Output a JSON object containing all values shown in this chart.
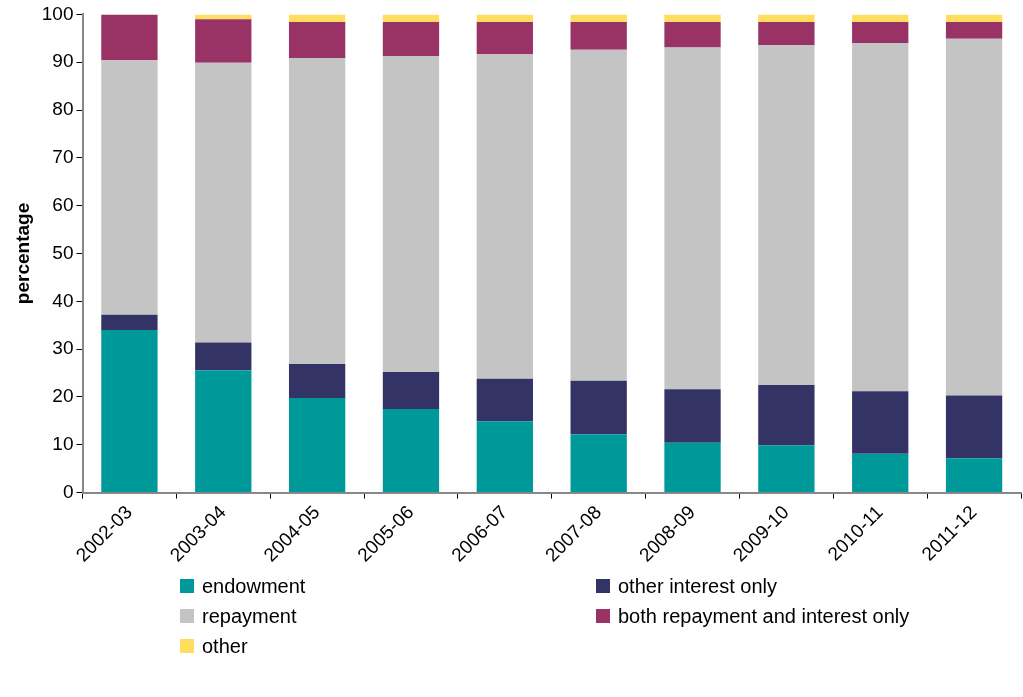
{
  "chart_data": {
    "type": "bar",
    "stacked": true,
    "ylabel": "percentage",
    "categories": [
      "2002-03",
      "2003-04",
      "2004-05",
      "2005-06",
      "2006-07",
      "2007-08",
      "2008-09",
      "2009-10",
      "2010-11",
      "2011-12"
    ],
    "series": [
      {
        "name": "endowment",
        "color": "#009999",
        "values": [
          34,
          25.6,
          19.8,
          17.5,
          14.9,
          12.2,
          10.4,
          9.9,
          8.1,
          7.2
        ]
      },
      {
        "name": "other interest only",
        "color": "#333366",
        "values": [
          3.2,
          5.8,
          7.1,
          7.7,
          8.9,
          11.2,
          11.2,
          12.6,
          13.1,
          13.1
        ]
      },
      {
        "name": "repayment",
        "color": "#c4c4c4",
        "values": [
          53.2,
          58.5,
          64.0,
          66.1,
          67.9,
          69.2,
          71.5,
          71.1,
          72.8,
          74.6
        ]
      },
      {
        "name": "both repayment and interest only",
        "color": "#993366",
        "values": [
          9.6,
          9.1,
          7.5,
          7.1,
          6.7,
          5.8,
          5.3,
          4.8,
          4.4,
          3.5
        ]
      },
      {
        "name": "other",
        "color": "#ffdd5e",
        "values": [
          0,
          1.0,
          1.6,
          1.6,
          1.6,
          1.6,
          1.6,
          1.6,
          1.6,
          1.6
        ]
      }
    ],
    "ylim": [
      0,
      100
    ],
    "yticks": [
      0,
      10,
      20,
      30,
      40,
      50,
      60,
      70,
      80,
      90,
      100
    ],
    "grid": false,
    "legend": "bottom"
  }
}
